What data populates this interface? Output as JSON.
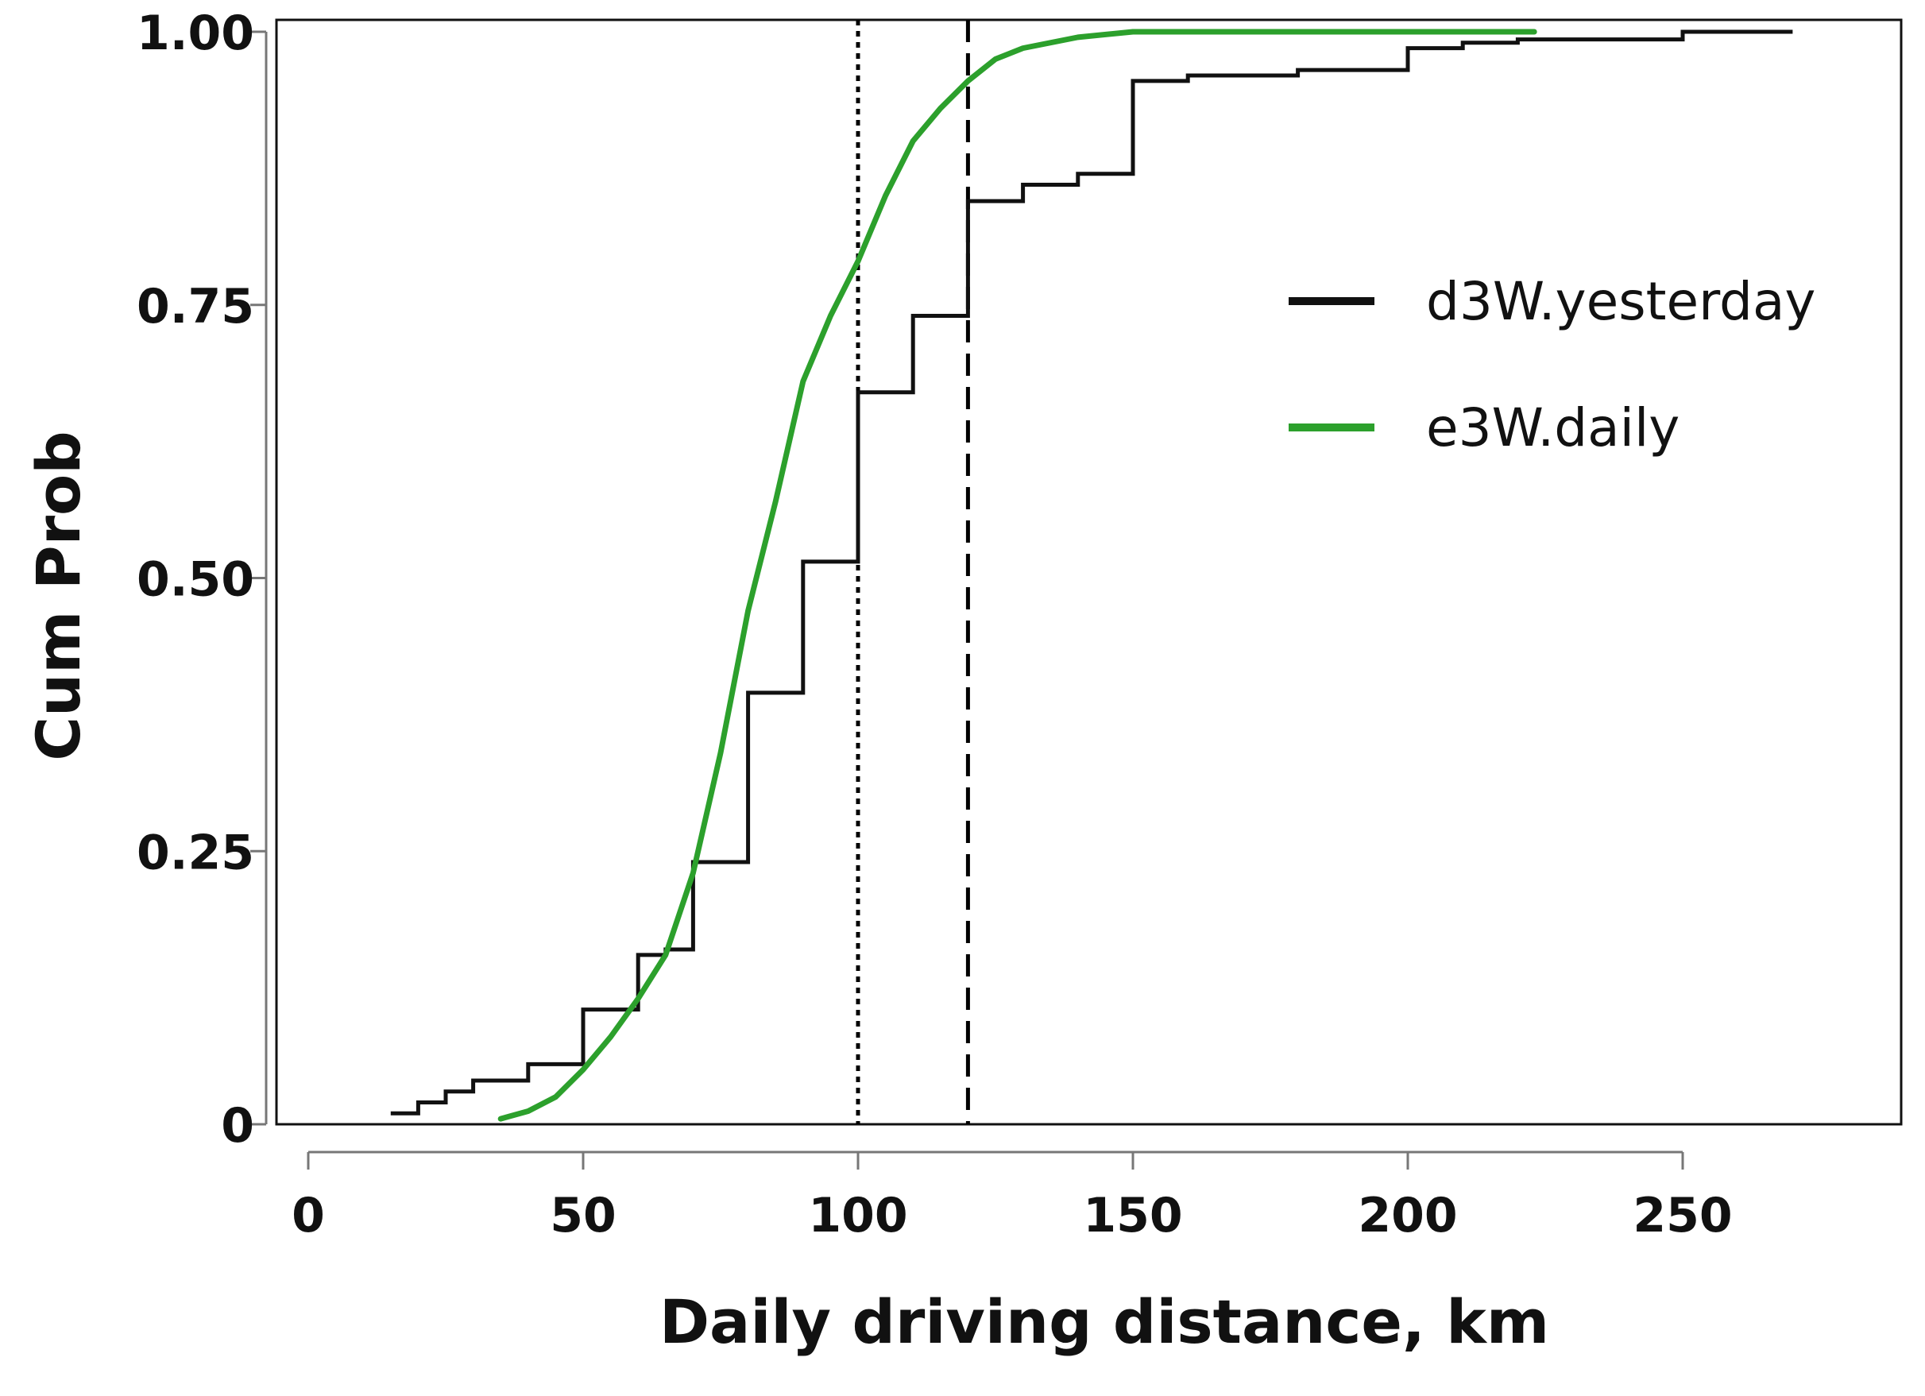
{
  "chart_data": {
    "type": "line",
    "title": "",
    "xlabel": "Daily driving distance, km",
    "ylabel": "Cum Prob",
    "xlim": [
      -5,
      290
    ],
    "ylim": [
      0,
      1.03
    ],
    "x_ticks": [
      0,
      50,
      100,
      150,
      200,
      250
    ],
    "x_tick_labels": [
      "0",
      "50",
      "100",
      "150",
      "200",
      "250"
    ],
    "y_ticks": [
      0,
      0.25,
      0.5,
      0.75,
      1.0
    ],
    "y_tick_labels": [
      "0",
      "0.25",
      "0.50",
      "0.75",
      "1.00"
    ],
    "grid": false,
    "legend_position": "right",
    "reference_lines": [
      {
        "x": 100,
        "style": "dotted",
        "color": "#000000"
      },
      {
        "x": 120,
        "style": "dashed",
        "color": "#000000"
      }
    ],
    "series": [
      {
        "name": "d3W.yesterday",
        "kind": "step",
        "color": "#111111",
        "x": [
          15,
          20,
          25,
          30,
          40,
          50,
          60,
          65,
          70,
          80,
          90,
          100,
          110,
          120,
          130,
          140,
          150,
          160,
          180,
          200,
          210,
          220,
          250,
          270
        ],
        "y": [
          0.01,
          0.02,
          0.03,
          0.04,
          0.055,
          0.105,
          0.155,
          0.16,
          0.24,
          0.395,
          0.515,
          0.67,
          0.74,
          0.845,
          0.86,
          0.87,
          0.955,
          0.96,
          0.965,
          0.985,
          0.99,
          0.993,
          1.0,
          1.0
        ]
      },
      {
        "name": "e3W.daily",
        "kind": "ecdf",
        "color": "#2ca02c",
        "x": [
          35,
          40,
          45,
          50,
          55,
          60,
          65,
          70,
          75,
          80,
          85,
          90,
          95,
          100,
          105,
          110,
          115,
          120,
          125,
          130,
          140,
          150,
          175,
          200,
          223
        ],
        "y": [
          0.005,
          0.012,
          0.025,
          0.05,
          0.08,
          0.115,
          0.155,
          0.23,
          0.34,
          0.47,
          0.57,
          0.68,
          0.74,
          0.79,
          0.85,
          0.9,
          0.93,
          0.955,
          0.975,
          0.985,
          0.995,
          1.0,
          1.0,
          1.0,
          1.0
        ]
      }
    ]
  }
}
